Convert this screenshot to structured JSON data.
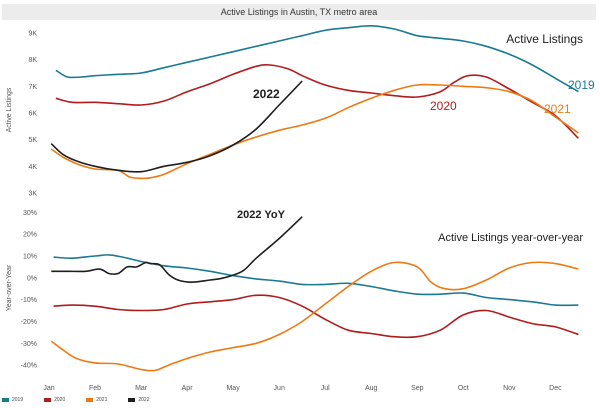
{
  "chart_data": [
    {
      "type": "line",
      "title": "Active Listings in Austin, TX metro area",
      "panel_title": "Active Listings",
      "ylabel": "Active Listings",
      "xlabel": "",
      "categories": [
        "Jan",
        "Feb",
        "Mar",
        "Apr",
        "May",
        "Jun",
        "Jul",
        "Aug",
        "Sep",
        "Oct",
        "Nov",
        "Dec"
      ],
      "x_range": [
        0,
        11.6
      ],
      "ylim": [
        3000,
        9300
      ],
      "yticks": [
        3000,
        4000,
        5000,
        6000,
        7000,
        8000,
        9000
      ],
      "ytick_labels": [
        "3K",
        "4K",
        "5K",
        "6K",
        "7K",
        "8K",
        "9K"
      ],
      "grid": false,
      "series": [
        {
          "name": "2019",
          "color": "#1a7a94",
          "x": [
            0.15,
            0.4,
            0.7,
            1,
            1.5,
            2,
            2.5,
            3,
            3.5,
            4,
            4.5,
            5,
            5.5,
            6,
            6.5,
            7,
            7.5,
            8,
            8.5,
            9,
            9.5,
            10,
            10.5,
            11,
            11.5
          ],
          "values": [
            7600,
            7350,
            7350,
            7400,
            7450,
            7500,
            7700,
            7900,
            8100,
            8300,
            8500,
            8700,
            8900,
            9100,
            9200,
            9270,
            9150,
            8900,
            8800,
            8700,
            8500,
            8200,
            7800,
            7300,
            6800
          ]
        },
        {
          "name": "2020",
          "color": "#b01c1c",
          "x": [
            0.15,
            0.5,
            1,
            1.5,
            2,
            2.5,
            3,
            3.5,
            4,
            4.5,
            4.8,
            5.2,
            5.5,
            6,
            6.5,
            7,
            7.5,
            8,
            8.5,
            8.8,
            9.1,
            9.5,
            10,
            10.5,
            11,
            11.5
          ],
          "values": [
            6550,
            6400,
            6400,
            6350,
            6300,
            6450,
            6800,
            7100,
            7450,
            7750,
            7800,
            7650,
            7400,
            7050,
            6850,
            6750,
            6650,
            6600,
            6800,
            7150,
            7400,
            7350,
            6900,
            6400,
            5900,
            5050
          ]
        },
        {
          "name": "2021",
          "color": "#ec7a14",
          "x": [
            0.05,
            0.3,
            0.6,
            1,
            1.5,
            1.75,
            2,
            2.2,
            2.5,
            3,
            3.5,
            4,
            4.5,
            5,
            5.5,
            6,
            6.5,
            7,
            7.5,
            8,
            8.5,
            9,
            9.5,
            10,
            10.5,
            11,
            11.5
          ],
          "values": [
            4650,
            4350,
            4100,
            3900,
            3850,
            3600,
            3550,
            3570,
            3700,
            4100,
            4450,
            4800,
            5100,
            5350,
            5550,
            5800,
            6200,
            6550,
            6850,
            7050,
            7050,
            7000,
            6950,
            6800,
            6450,
            5850,
            5250
          ]
        },
        {
          "name": "2022",
          "color": "#1e1e1e",
          "x": [
            0.05,
            0.3,
            0.6,
            1,
            1.5,
            2,
            2.5,
            3,
            3.5,
            4,
            4.5,
            5,
            5.5
          ],
          "values": [
            4850,
            4450,
            4200,
            4000,
            3850,
            3800,
            4000,
            4150,
            4400,
            4800,
            5400,
            6300,
            7200
          ]
        }
      ]
    },
    {
      "type": "line",
      "panel_title": "Active Listings year-over-year",
      "ylabel": "Year-over-Year",
      "xlabel": "",
      "categories": [
        "Jan",
        "Feb",
        "Mar",
        "Apr",
        "May",
        "Jun",
        "Jul",
        "Aug",
        "Sep",
        "Oct",
        "Nov",
        "Dec"
      ],
      "x_range": [
        0,
        11.6
      ],
      "ylim": [
        -45,
        32
      ],
      "yticks": [
        -40,
        -30,
        -20,
        -10,
        0,
        10,
        20,
        30
      ],
      "ytick_labels": [
        "-40%",
        "-30%",
        "-20%",
        "-10%",
        "0%",
        "10%",
        "20%",
        "30%"
      ],
      "grid": false,
      "series": [
        {
          "name": "2019",
          "color": "#1a7a94",
          "x": [
            0.1,
            0.5,
            1,
            1.3,
            1.6,
            2,
            2.5,
            3,
            3.5,
            4,
            4.5,
            5,
            5.5,
            6,
            6.5,
            7,
            7.5,
            8,
            8.5,
            9,
            9.5,
            10,
            10.5,
            11,
            11.5
          ],
          "values": [
            9.5,
            9,
            10,
            10.5,
            9.5,
            7.5,
            5.5,
            4.5,
            3,
            1,
            -0.5,
            -1.5,
            -3,
            -3,
            -2.5,
            -4,
            -6,
            -7.5,
            -7.5,
            -7,
            -9,
            -10,
            -11,
            -12.5,
            -12.5
          ]
        },
        {
          "name": "2020",
          "color": "#b01c1c",
          "x": [
            0.1,
            0.5,
            1,
            1.5,
            2,
            2.5,
            3,
            3.5,
            4,
            4.5,
            5,
            5.5,
            6,
            6.5,
            7,
            7.5,
            8,
            8.5,
            9,
            9.5,
            10,
            10.5,
            11,
            11.5
          ],
          "values": [
            -13,
            -12.5,
            -13,
            -14.5,
            -15,
            -14.5,
            -12,
            -11,
            -10,
            -8,
            -9,
            -13,
            -19,
            -24,
            -25.5,
            -27,
            -27,
            -24,
            -17,
            -15,
            -18,
            -21,
            -22.5,
            -26
          ]
        },
        {
          "name": "2021",
          "color": "#ec7a14",
          "x": [
            0.05,
            0.3,
            0.6,
            1,
            1.5,
            2,
            2.3,
            2.6,
            3,
            3.5,
            4,
            4.5,
            5,
            5.5,
            6,
            6.5,
            7,
            7.5,
            8,
            8.3,
            8.6,
            9,
            9.5,
            10,
            10.5,
            11,
            11.5
          ],
          "values": [
            -29,
            -33,
            -37,
            -39,
            -39.5,
            -42,
            -42.5,
            -40,
            -37,
            -34,
            -32,
            -30,
            -26,
            -20,
            -12,
            -4,
            3,
            7,
            5,
            -2,
            -5,
            -5,
            -1,
            4.5,
            7,
            6.5,
            4
          ]
        },
        {
          "name": "2022",
          "color": "#1e1e1e",
          "x": [
            0.05,
            0.4,
            0.8,
            1.1,
            1.3,
            1.5,
            1.7,
            1.9,
            2.1,
            2.2,
            2.4,
            2.6,
            2.8,
            3.1,
            3.5,
            3.8,
            4.2,
            4.5,
            5,
            5.5
          ],
          "values": [
            3,
            3,
            3,
            4,
            2,
            2,
            5,
            5,
            7,
            6.5,
            6,
            1.5,
            -1,
            -2,
            -1,
            0,
            3,
            9,
            18,
            28
          ]
        }
      ]
    }
  ],
  "labels": {
    "top": {
      "2019": "2019",
      "2020": "2020",
      "2021": "2021",
      "2022": "2022"
    },
    "bottom": {
      "2022": "2022 YoY"
    }
  },
  "legend": [
    "2019",
    "2020",
    "2021",
    "2022"
  ]
}
